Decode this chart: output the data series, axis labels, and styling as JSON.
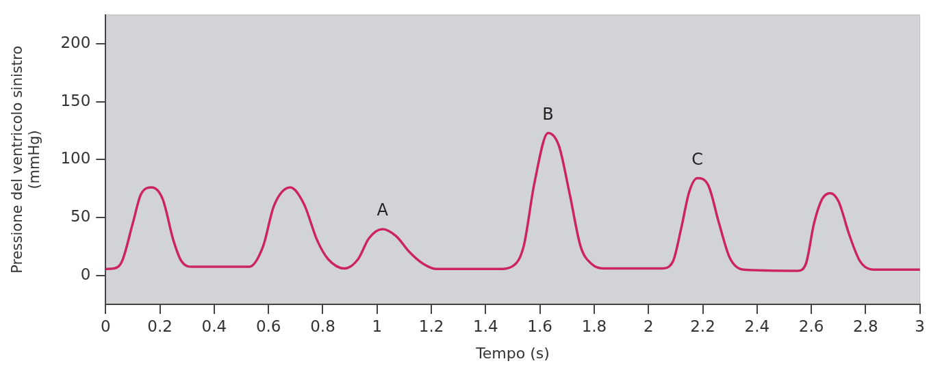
{
  "chart_data": {
    "type": "line",
    "xlabel": "Tempo (s)",
    "ylabel": "Pressione del ventricolo sinistro\n(mmHg)",
    "x": [
      0,
      0.03,
      0.06,
      0.1,
      0.13,
      0.17,
      0.21,
      0.25,
      0.28,
      0.32,
      0.53,
      0.58,
      0.62,
      0.68,
      0.73,
      0.78,
      0.82,
      0.88,
      0.93,
      0.97,
      1.02,
      1.07,
      1.12,
      1.17,
      1.22,
      1.45,
      1.5,
      1.54,
      1.58,
      1.63,
      1.67,
      1.71,
      1.75,
      1.79,
      1.84,
      2.05,
      2.09,
      2.12,
      2.15,
      2.18,
      2.22,
      2.26,
      2.3,
      2.35,
      2.55,
      2.58,
      2.61,
      2.64,
      2.67,
      2.7,
      2.74,
      2.78,
      2.83,
      3
    ],
    "series": [
      {
        "color": "#cc2462",
        "values": [
          5.5,
          6,
          12,
          45,
          70,
          76,
          66,
          30,
          12,
          7.5,
          7.5,
          25,
          60,
          76,
          62,
          30,
          14,
          6,
          14,
          32,
          40,
          34,
          20,
          10,
          5.5,
          5.5,
          8,
          25,
          80,
          123,
          112,
          70,
          25,
          10,
          6,
          6,
          12,
          40,
          72,
          84,
          78,
          45,
          15,
          5,
          4,
          10,
          45,
          66,
          71,
          64,
          35,
          12,
          5,
          5
        ]
      }
    ],
    "xlim": [
      0,
      3
    ],
    "xticks": [
      0,
      0.2,
      0.4,
      0.6,
      0.8,
      1,
      1.2,
      1.4,
      1.6,
      1.8,
      2,
      2.2,
      2.4,
      2.6,
      2.8,
      3
    ],
    "ylim": [
      -25,
      225
    ],
    "yticks": [
      0,
      50,
      100,
      150,
      200
    ],
    "marker": "none",
    "line_style": "solid",
    "legend": false,
    "annotations": [
      {
        "text": "A",
        "x": 1.02,
        "y": 40
      },
      {
        "text": "B",
        "x": 1.63,
        "y": 123
      },
      {
        "text": "C",
        "x": 2.18,
        "y": 84
      }
    ]
  }
}
